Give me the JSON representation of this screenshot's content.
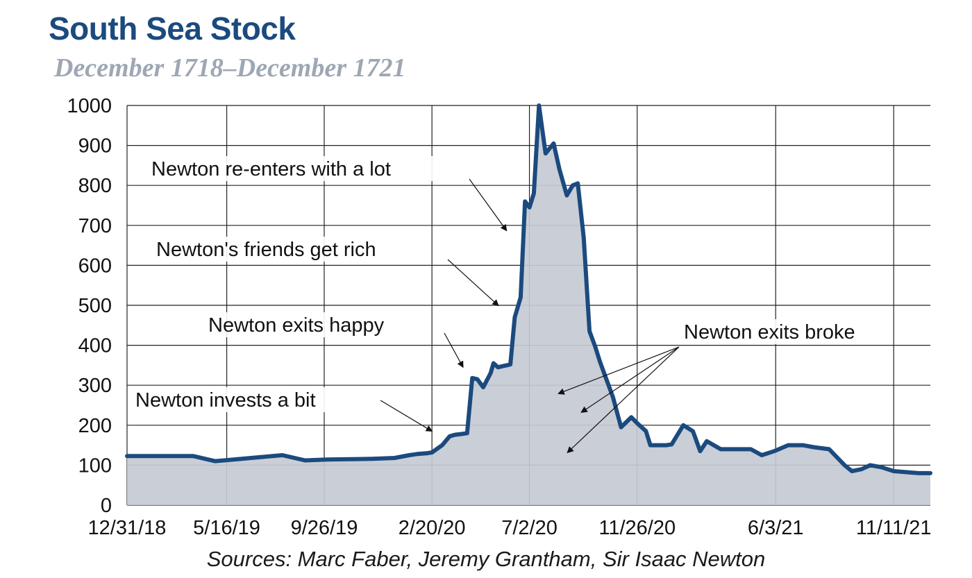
{
  "chart_data": {
    "type": "area",
    "title": "South Sea Stock",
    "subtitle": "December 1718–December 1721",
    "source": "Sources: Marc Faber, Jeremy Grantham, Sir Isaac Newton",
    "ylim": [
      0,
      1000
    ],
    "xlim": [
      "1718-12-31",
      "1721-12-31"
    ],
    "y_ticks": [
      "0",
      "100",
      "200",
      "300",
      "400",
      "500",
      "600",
      "700",
      "800",
      "900",
      "1000"
    ],
    "x_ticks": [
      {
        "label": "12/31/18",
        "date": "1718-12-31"
      },
      {
        "label": "5/16/19",
        "date": "1719-05-16"
      },
      {
        "label": "9/26/19",
        "date": "1719-09-26"
      },
      {
        "label": "2/20/20",
        "date": "1720-02-20"
      },
      {
        "label": "7/2/20",
        "date": "1720-07-02"
      },
      {
        "label": "11/26/20",
        "date": "1720-11-26"
      },
      {
        "label": "6/3/21",
        "date": "1721-06-03"
      },
      {
        "label": "11/11/21",
        "date": "1721-11-11"
      }
    ],
    "grid": true,
    "colors": {
      "line": "#1b4a7e",
      "fill": "#c5cad3",
      "title": "#1b4a7e",
      "subtitle": "#9ea7b3"
    },
    "series": [
      {
        "x": [
          "1718-12-31",
          "1719-01-31",
          "1719-02-28",
          "1719-03-31",
          "1719-04-30",
          "1719-05-31",
          "1719-06-30",
          "1719-07-31",
          "1719-08-31",
          "1719-09-30",
          "1719-10-31",
          "1719-11-30",
          "1719-12-31",
          "1720-01-20",
          "1720-01-31",
          "1720-02-14",
          "1720-02-20",
          "1720-03-05",
          "1720-03-15",
          "1720-03-22",
          "1720-03-31",
          "1720-04-08",
          "1720-04-15",
          "1720-04-22",
          "1720-04-30",
          "1720-05-10",
          "1720-05-14",
          "1720-05-20",
          "1720-05-25",
          "1720-06-01",
          "1720-06-06",
          "1720-06-12",
          "1720-06-20",
          "1720-06-26",
          "1720-07-02",
          "1720-07-08",
          "1720-07-15",
          "1720-07-24",
          "1720-08-04",
          "1720-08-12",
          "1720-08-22",
          "1720-08-30",
          "1720-09-06",
          "1720-09-14",
          "1720-09-22",
          "1720-09-30",
          "1720-10-06",
          "1720-10-14",
          "1720-10-24",
          "1720-11-04",
          "1720-11-18",
          "1720-11-26",
          "1720-12-08",
          "1720-12-14",
          "1720-12-27",
          "1721-01-05",
          "1721-01-12",
          "1721-01-28",
          "1721-02-10",
          "1721-02-20",
          "1721-03-01",
          "1721-03-20",
          "1721-04-15",
          "1721-04-30",
          "1721-05-15",
          "1721-06-01",
          "1721-06-20",
          "1721-07-10",
          "1721-07-25",
          "1721-08-15",
          "1721-09-05",
          "1721-09-15",
          "1721-09-28",
          "1721-10-10",
          "1721-10-25",
          "1721-11-11",
          "1721-12-15",
          "1721-12-31"
        ],
        "y": [
          123,
          123,
          123,
          123,
          110,
          115,
          120,
          125,
          112,
          114,
          115,
          116,
          118,
          125,
          128,
          130,
          132,
          150,
          172,
          176,
          178,
          180,
          318,
          315,
          295,
          330,
          355,
          345,
          347,
          350,
          352,
          470,
          520,
          760,
          745,
          780,
          1000,
          880,
          905,
          840,
          775,
          800,
          805,
          670,
          435,
          395,
          360,
          320,
          270,
          195,
          220,
          205,
          185,
          150,
          150,
          150,
          152,
          200,
          185,
          135,
          160,
          140,
          140,
          140,
          125,
          135,
          150,
          150,
          145,
          140,
          100,
          85,
          90,
          100,
          95,
          85,
          80,
          80
        ]
      }
    ],
    "annotations": [
      {
        "text": "Newton invests a bit",
        "x": "1720-02-20",
        "y": 185
      },
      {
        "text": "Newton exits happy",
        "x": "1720-04-10",
        "y": 352
      },
      {
        "text": "Newton's friends get rich",
        "x": "1720-06-01",
        "y": 520
      },
      {
        "text": "Newton re-enters with a lot",
        "x": "1720-06-15",
        "y": 725
      },
      {
        "text": "Newton exits broke",
        "x": "1720-10-30",
        "y": 305
      }
    ]
  }
}
